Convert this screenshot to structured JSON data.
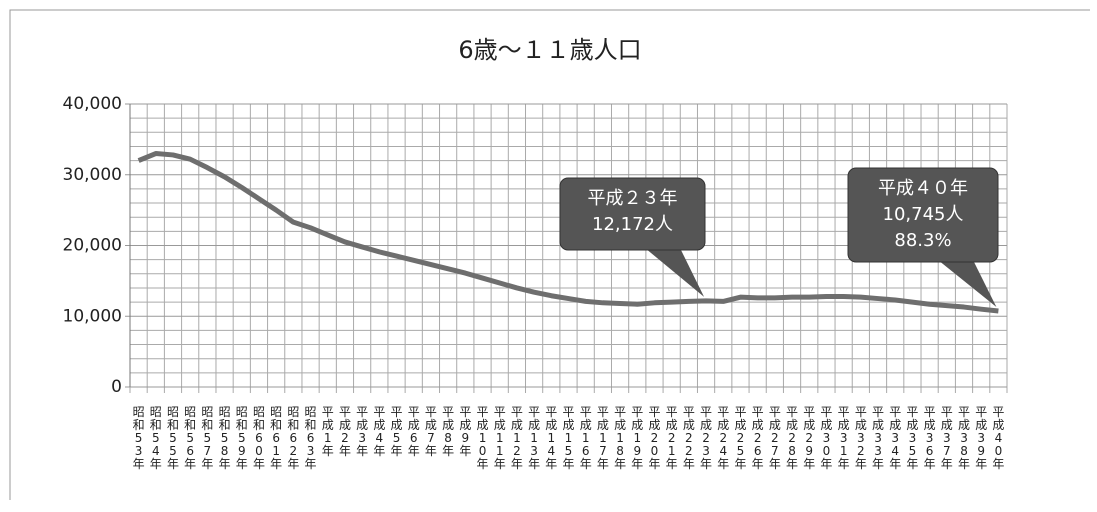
{
  "chart_data": {
    "type": "line",
    "title": "6歳～１１歳人口",
    "categories": [
      "昭和53年",
      "昭和54年",
      "昭和55年",
      "昭和56年",
      "昭和57年",
      "昭和58年",
      "昭和59年",
      "昭和60年",
      "昭和61年",
      "昭和62年",
      "昭和63年",
      "平成1年",
      "平成2年",
      "平成3年",
      "平成4年",
      "平成5年",
      "平成6年",
      "平成7年",
      "平成8年",
      "平成9年",
      "平成10年",
      "平成11年",
      "平成12年",
      "平成13年",
      "平成14年",
      "平成15年",
      "平成16年",
      "平成17年",
      "平成18年",
      "平成19年",
      "平成20年",
      "平成21年",
      "平成22年",
      "平成23年",
      "平成24年",
      "平成25年",
      "平成26年",
      "平成27年",
      "平成28年",
      "平成29年",
      "平成30年",
      "平成31年",
      "平成32年",
      "平成33年",
      "平成34年",
      "平成35年",
      "平成36年",
      "平成37年",
      "平成38年",
      "平成39年",
      "平成40年"
    ],
    "series": [
      {
        "color": "#6e6e6e",
        "values": [
          32000,
          33000,
          32800,
          32200,
          31000,
          29700,
          28200,
          26600,
          25000,
          23300,
          22500,
          21500,
          20500,
          19800,
          19100,
          18500,
          17900,
          17300,
          16700,
          16100,
          15400,
          14700,
          14000,
          13400,
          12900,
          12500,
          12100,
          11900,
          11800,
          11700,
          11900,
          12000,
          12100,
          12172,
          12100,
          12700,
          12600,
          12600,
          12700,
          12700,
          12800,
          12800,
          12700,
          12500,
          12300,
          12000,
          11700,
          11500,
          11300,
          11000,
          10745
        ]
      }
    ],
    "ylim": [
      0,
      40000
    ],
    "yticks": [
      0,
      {
        "value": 10000,
        "label": "10,000"
      },
      {
        "value": 20000,
        "label": "20,000"
      },
      {
        "value": 30000,
        "label": "30,000"
      },
      {
        "value": 40000,
        "label": "40,000"
      }
    ],
    "grid": true,
    "annotations": [
      {
        "lines": [
          "平成２３年",
          "12,172人"
        ]
      },
      {
        "lines": [
          "平成４０年",
          "10,745人",
          "88.3%"
        ]
      }
    ]
  }
}
